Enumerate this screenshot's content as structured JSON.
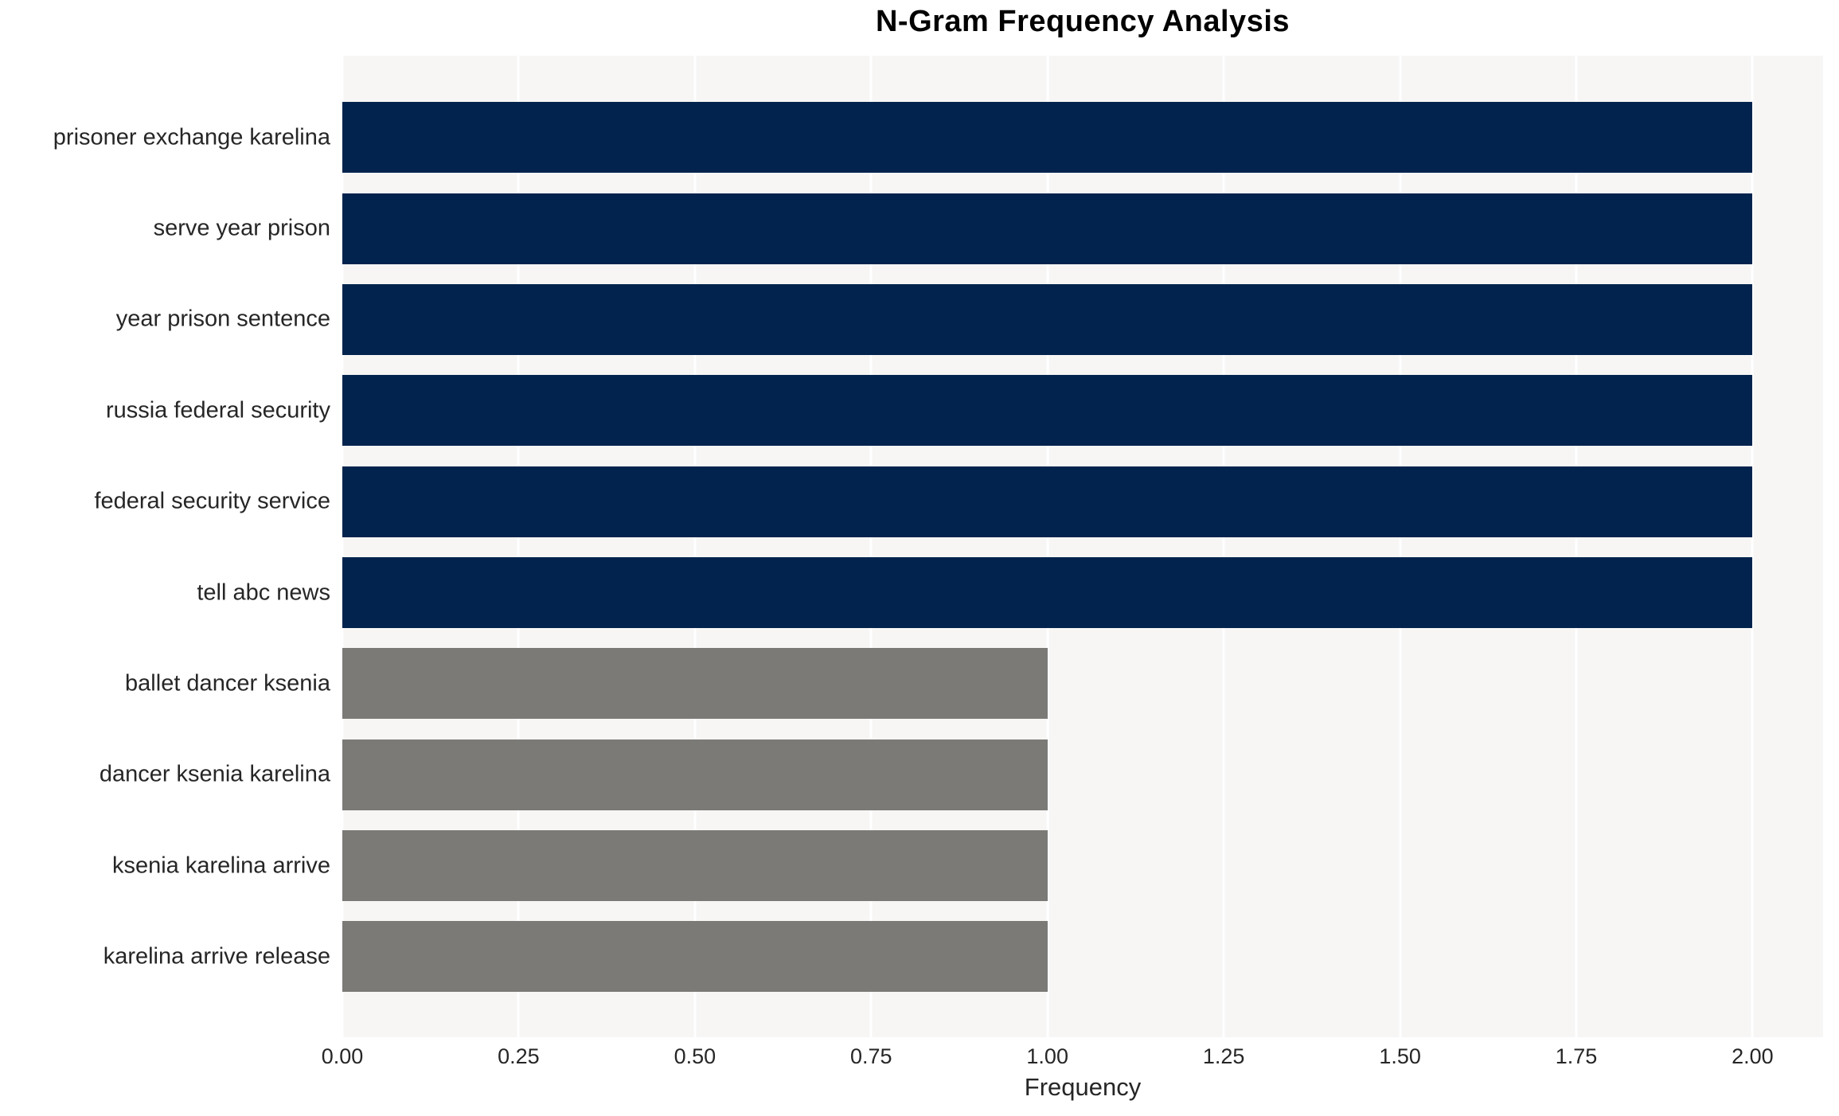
{
  "chart_data": {
    "type": "bar",
    "orientation": "horizontal",
    "title": "N-Gram Frequency Analysis",
    "xlabel": "Frequency",
    "ylabel": "",
    "categories": [
      "prisoner exchange karelina",
      "serve year prison",
      "year prison sentence",
      "russia federal security",
      "federal security service",
      "tell abc news",
      "ballet dancer ksenia",
      "dancer ksenia karelina",
      "ksenia karelina arrive",
      "karelina arrive release"
    ],
    "values": [
      2,
      2,
      2,
      2,
      2,
      2,
      1,
      1,
      1,
      1
    ],
    "bar_colors": [
      "#02234d",
      "#02234d",
      "#02234d",
      "#02234d",
      "#02234d",
      "#02234d",
      "#7b7a77",
      "#7b7a77",
      "#7b7a77",
      "#7b7a77"
    ],
    "xlim": [
      0,
      2.1
    ],
    "xticks": [
      0.0,
      0.25,
      0.5,
      0.75,
      1.0,
      1.25,
      1.5,
      1.75,
      2.0
    ],
    "xtick_labels": [
      "0.00",
      "0.25",
      "0.50",
      "0.75",
      "1.00",
      "1.25",
      "1.50",
      "1.75",
      "2.00"
    ],
    "legend": "none",
    "grid": "vertical-white-gridlines-on-light-panel",
    "colors": {
      "high_frequency_bar": "#02234d",
      "low_frequency_bar": "#7b7a77",
      "panel_background": "#f7f6f5",
      "gridline": "#ffffff",
      "figure_background": "#ffffff",
      "text": "#262626",
      "title_text": "#000000"
    }
  }
}
